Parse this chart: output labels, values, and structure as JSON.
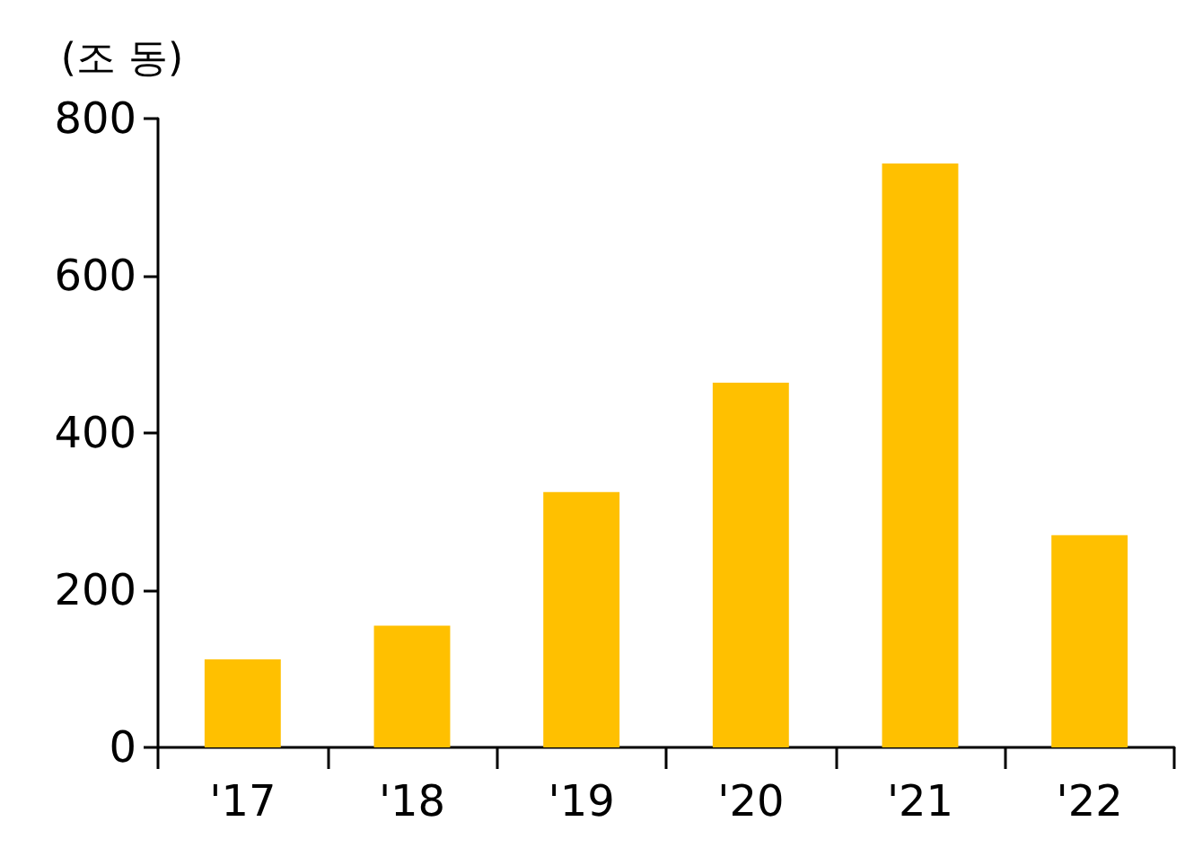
{
  "chart_data": {
    "type": "bar",
    "ylabel": "(조 동)",
    "categories": [
      "'17",
      "'18",
      "'19",
      "'20",
      "'21",
      "'22"
    ],
    "values": [
      112,
      155,
      325,
      464,
      743,
      270
    ],
    "color": "#ffc000",
    "ylim": [
      0,
      800
    ],
    "yticks": [
      0,
      200,
      400,
      600,
      800
    ],
    "grid": false
  }
}
